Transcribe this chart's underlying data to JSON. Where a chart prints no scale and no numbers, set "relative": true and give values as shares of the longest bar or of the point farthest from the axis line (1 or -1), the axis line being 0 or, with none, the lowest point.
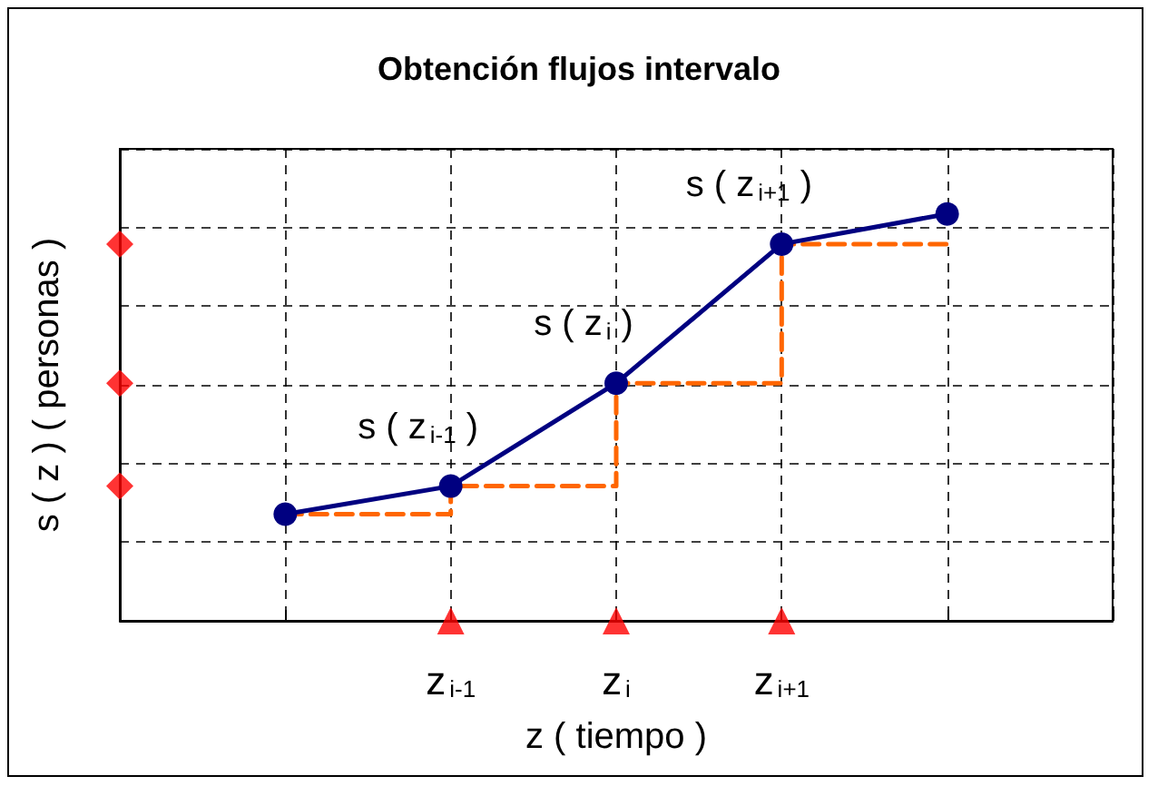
{
  "chart_data": {
    "type": "line",
    "title": "Obtención flujos intervalo",
    "xlabel": "z ( tiempo )",
    "ylabel": "s ( z ) ( personas )",
    "relative": true,
    "grid": true,
    "categories": [
      null,
      null,
      "z$_{i-1}$",
      "z$_{i}$",
      "z$_{i+1}$",
      null,
      null
    ],
    "series": [
      {
        "color": "#000080",
        "marker": "circle",
        "line_style": "solid",
        "values": [
          null,
          0.262,
          0.331,
          0.584,
          0.926,
          1,
          null
        ]
      },
      {
        "type": "step",
        "color": "#ff6600",
        "marker": "none",
        "line_style": "dashed",
        "values": [
          null,
          0.262,
          0.331,
          0.584,
          0.926,
          0.93,
          null
        ]
      },
      {
        "type": "scatter",
        "color": "#ff0000",
        "marker": "diamond",
        "values": [
          0.331,
          null,
          null,
          null,
          null,
          null,
          null
        ]
      },
      {
        "type": "scatter",
        "color": "#ff0000",
        "marker": "diamond",
        "values": [
          0.584,
          null,
          null,
          null,
          null,
          null,
          null
        ]
      },
      {
        "type": "scatter",
        "color": "#ff0000",
        "marker": "diamond",
        "values": [
          0.926,
          null,
          null,
          null,
          null,
          null,
          null
        ]
      },
      {
        "type": "scatter",
        "color": "#ff0000",
        "marker": "triangle",
        "values": [
          null,
          null,
          0,
          0,
          0,
          null,
          null
        ]
      }
    ],
    "annotations": [
      {
        "text": "s ( z$_{i-1}$ )",
        "x": "z$_{i-1}$",
        "y": 0.331
      },
      {
        "text": "s ( z$_{i}$ )",
        "x": "z$_{i}$",
        "y": 0.584
      },
      {
        "text": "s ( z$_{i+1}$ )",
        "x": "z$_{i+1}$",
        "y": 0.926
      }
    ]
  }
}
